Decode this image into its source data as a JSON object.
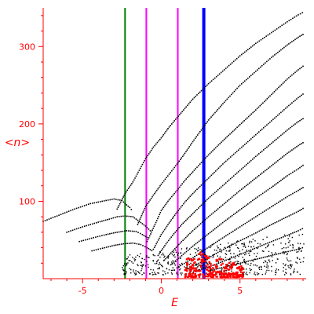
{
  "chart_data": {
    "type": "scatter",
    "xlabel": "E",
    "ylabel": "<n>",
    "xlim": [
      -7.5,
      9.2
    ],
    "ylim": [
      0,
      350
    ],
    "xticks": [
      -5,
      0,
      5
    ],
    "xtick_labels": [
      "-5",
      "0",
      "5"
    ],
    "yticks": [
      100,
      200,
      300
    ],
    "ytick_labels": [
      "100",
      "200",
      "300"
    ],
    "grid": false,
    "colors": {
      "axis": "#ff0000",
      "points": "#000000",
      "red_points": "#ff0000",
      "green_line": "#008000",
      "magenta_line": "#ff00ff",
      "blue_line": "#0000ff"
    },
    "vertical_lines": [
      {
        "x": -2.3,
        "color": "#008000",
        "width": 2
      },
      {
        "x": -0.95,
        "color": "#ff00ff",
        "width": 2
      },
      {
        "x": 1.05,
        "color": "#ff00ff",
        "width": 2
      },
      {
        "x": 2.7,
        "color": "#0000ff",
        "width": 4
      }
    ],
    "curves": [
      {
        "points": [
          [
            -7.5,
            74
          ],
          [
            -6.5,
            82
          ],
          [
            -5.5,
            90
          ],
          [
            -4.5,
            97
          ],
          [
            -3.5,
            101
          ],
          [
            -3.0,
            103
          ],
          [
            -2.5,
            101
          ],
          [
            -2.3,
            97
          ],
          [
            -2.0,
            92
          ],
          [
            -1.8,
            87
          ]
        ]
      },
      {
        "points": [
          [
            -6.0,
            60
          ],
          [
            -5.0,
            67
          ],
          [
            -4.0,
            73
          ],
          [
            -3.3,
            77
          ],
          [
            -2.8,
            80
          ],
          [
            -2.3,
            81
          ],
          [
            -1.8,
            80
          ],
          [
            -1.4,
            74
          ],
          [
            -1.0,
            68
          ],
          [
            -0.6,
            60
          ]
        ]
      },
      {
        "points": [
          [
            -5.2,
            48
          ],
          [
            -4.3,
            53
          ],
          [
            -3.5,
            57
          ],
          [
            -2.8,
            60
          ],
          [
            -2.2,
            62
          ],
          [
            -1.6,
            61
          ],
          [
            -1.2,
            57
          ],
          [
            -0.8,
            52
          ]
        ]
      },
      {
        "points": [
          [
            -4.4,
            36
          ],
          [
            -3.6,
            40
          ],
          [
            -3.0,
            43
          ],
          [
            -2.4,
            45
          ],
          [
            -1.8,
            46
          ],
          [
            -1.3,
            44
          ],
          [
            -0.9,
            40
          ],
          [
            -0.5,
            35
          ]
        ]
      },
      {
        "points": [
          [
            -2.8,
            90
          ],
          [
            -2.3,
            110
          ],
          [
            -1.8,
            125
          ],
          [
            -1.4,
            140
          ],
          [
            -1.0,
            155
          ],
          [
            -0.5,
            170
          ],
          [
            0.0,
            182
          ],
          [
            0.5,
            196
          ],
          [
            1.0,
            208
          ],
          [
            2.0,
            232
          ],
          [
            3.0,
            252
          ],
          [
            4.0,
            270
          ],
          [
            5.0,
            288
          ],
          [
            6.0,
            304
          ],
          [
            7.0,
            318
          ],
          [
            8.0,
            332
          ],
          [
            8.7,
            341
          ],
          [
            9.1,
            345
          ]
        ]
      },
      {
        "points": [
          [
            -1.5,
            70
          ],
          [
            -1.0,
            93
          ],
          [
            -0.5,
            108
          ],
          [
            0.0,
            122
          ],
          [
            0.5,
            135
          ],
          [
            1.0,
            148
          ],
          [
            1.5,
            162
          ],
          [
            2.0,
            177
          ],
          [
            3.0,
            205
          ],
          [
            4.0,
            228
          ],
          [
            5.0,
            250
          ],
          [
            6.0,
            268
          ],
          [
            7.0,
            286
          ],
          [
            8.0,
            302
          ],
          [
            8.7,
            312
          ],
          [
            9.1,
            317
          ]
        ]
      },
      {
        "points": [
          [
            -0.9,
            48
          ],
          [
            -0.4,
            70
          ],
          [
            0.0,
            88
          ],
          [
            0.5,
            102
          ],
          [
            1.0,
            114
          ],
          [
            1.5,
            127
          ],
          [
            2.0,
            138
          ],
          [
            3.0,
            160
          ],
          [
            4.0,
            180
          ],
          [
            5.0,
            199
          ],
          [
            6.0,
            218
          ],
          [
            7.0,
            238
          ],
          [
            8.0,
            258
          ],
          [
            8.7,
            270
          ],
          [
            9.1,
            276
          ]
        ]
      },
      {
        "points": [
          [
            -0.5,
            38
          ],
          [
            0.0,
            57
          ],
          [
            0.5,
            72
          ],
          [
            1.0,
            86
          ],
          [
            1.5,
            99
          ],
          [
            2.0,
            110
          ],
          [
            3.0,
            130
          ],
          [
            4.0,
            150
          ],
          [
            5.0,
            168
          ],
          [
            6.0,
            186
          ],
          [
            7.0,
            204
          ],
          [
            8.0,
            222
          ],
          [
            8.7,
            234
          ],
          [
            9.1,
            240
          ]
        ]
      },
      {
        "points": [
          [
            -0.2,
            30
          ],
          [
            0.3,
            45
          ],
          [
            0.8,
            58
          ],
          [
            1.3,
            70
          ],
          [
            2.0,
            84
          ],
          [
            3.0,
            104
          ],
          [
            4.0,
            122
          ],
          [
            5.0,
            140
          ],
          [
            6.0,
            158
          ],
          [
            7.0,
            175
          ],
          [
            8.0,
            192
          ],
          [
            8.7,
            203
          ],
          [
            9.1,
            208
          ]
        ]
      },
      {
        "points": [
          [
            0.2,
            24
          ],
          [
            0.7,
            35
          ],
          [
            1.2,
            46
          ],
          [
            2.0,
            62
          ],
          [
            3.0,
            80
          ],
          [
            4.0,
            97
          ],
          [
            5.0,
            114
          ],
          [
            6.0,
            130
          ],
          [
            7.0,
            146
          ],
          [
            8.0,
            162
          ],
          [
            8.7,
            172
          ],
          [
            9.1,
            177
          ]
        ]
      },
      {
        "points": [
          [
            0.6,
            18
          ],
          [
            1.2,
            28
          ],
          [
            2.0,
            42
          ],
          [
            3.0,
            58
          ],
          [
            4.0,
            74
          ],
          [
            5.0,
            89
          ],
          [
            6.0,
            104
          ],
          [
            7.0,
            118
          ],
          [
            8.0,
            133
          ],
          [
            8.7,
            142
          ],
          [
            9.1,
            148
          ]
        ]
      },
      {
        "points": [
          [
            1.0,
            14
          ],
          [
            1.8,
            24
          ],
          [
            2.8,
            38
          ],
          [
            4.0,
            54
          ],
          [
            5.0,
            67
          ],
          [
            6.0,
            80
          ],
          [
            7.0,
            93
          ],
          [
            8.0,
            106
          ],
          [
            8.7,
            114
          ],
          [
            9.1,
            119
          ]
        ]
      },
      {
        "points": [
          [
            1.6,
            12
          ],
          [
            2.6,
            22
          ],
          [
            3.6,
            34
          ],
          [
            4.8,
            47
          ],
          [
            6.0,
            59
          ],
          [
            7.0,
            70
          ],
          [
            8.0,
            80
          ],
          [
            8.7,
            87
          ],
          [
            9.1,
            92
          ]
        ]
      },
      {
        "points": [
          [
            2.2,
            10
          ],
          [
            3.4,
            18
          ],
          [
            4.6,
            28
          ],
          [
            5.8,
            38
          ],
          [
            7.0,
            48
          ],
          [
            8.0,
            56
          ],
          [
            8.7,
            62
          ],
          [
            9.1,
            66
          ]
        ]
      },
      {
        "points": [
          [
            3.0,
            10
          ],
          [
            4.2,
            16
          ],
          [
            5.4,
            22
          ],
          [
            6.6,
            28
          ],
          [
            7.8,
            34
          ],
          [
            8.7,
            38
          ],
          [
            9.1,
            41
          ]
        ]
      }
    ],
    "scatter_cloud": {
      "x_range": [
        -2.5,
        9.1
      ],
      "y_range": [
        5,
        60
      ]
    },
    "red_cluster": {
      "x_range": [
        1.5,
        5.2
      ],
      "y_range": [
        2,
        35
      ]
    }
  }
}
